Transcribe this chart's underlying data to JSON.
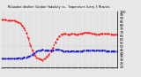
{
  "title": "Milwaukee Weather Outdoor Humidity vs. Temperature Every 5 Minutes",
  "bg_color": "#e8e8e8",
  "plot_bg_color": "#e8e8e8",
  "grid_color": "#aaaaaa",
  "red_color": "#ff0000",
  "blue_color": "#0000cc",
  "ylim": [
    20,
    100
  ],
  "xlim": [
    0,
    280
  ],
  "red_x": [
    0,
    5,
    10,
    15,
    20,
    25,
    30,
    35,
    40,
    45,
    50,
    55,
    60,
    65,
    70,
    75,
    80,
    85,
    90,
    95,
    100,
    105,
    110,
    115,
    120,
    125,
    130,
    135,
    140,
    145,
    150,
    155,
    160,
    165,
    170,
    175,
    180,
    185,
    190,
    195,
    200,
    205,
    210,
    215,
    220,
    225,
    230,
    235,
    240,
    245,
    250,
    255,
    260,
    265,
    270,
    275,
    280
  ],
  "red_y": [
    88,
    88,
    88,
    87,
    87,
    87,
    87,
    86,
    85,
    83,
    80,
    76,
    70,
    62,
    52,
    44,
    38,
    34,
    32,
    31,
    30,
    32,
    35,
    38,
    42,
    48,
    55,
    60,
    64,
    67,
    68,
    68,
    67,
    67,
    68,
    68,
    67,
    67,
    68,
    68,
    69,
    70,
    70,
    69,
    68,
    68,
    67,
    67,
    68,
    68,
    68,
    68,
    68,
    67,
    67,
    67,
    67
  ],
  "blue_x": [
    0,
    5,
    10,
    15,
    20,
    25,
    30,
    35,
    40,
    45,
    50,
    55,
    60,
    65,
    70,
    75,
    80,
    85,
    90,
    95,
    100,
    105,
    110,
    115,
    120,
    125,
    130,
    135,
    140,
    145,
    150,
    155,
    160,
    165,
    170,
    175,
    180,
    185,
    190,
    195,
    200,
    205,
    210,
    215,
    220,
    225,
    230,
    235,
    240,
    245,
    250,
    255,
    260,
    265,
    270,
    275,
    280
  ],
  "blue_y": [
    32,
    32,
    32,
    32,
    32,
    32,
    32,
    32,
    33,
    33,
    33,
    34,
    34,
    35,
    36,
    38,
    40,
    42,
    44,
    44,
    45,
    44,
    44,
    44,
    44,
    44,
    45,
    45,
    45,
    44,
    43,
    43,
    43,
    43,
    43,
    43,
    43,
    43,
    43,
    43,
    44,
    44,
    44,
    44,
    44,
    44,
    44,
    44,
    44,
    44,
    44,
    43,
    43,
    43,
    43,
    43,
    43
  ]
}
